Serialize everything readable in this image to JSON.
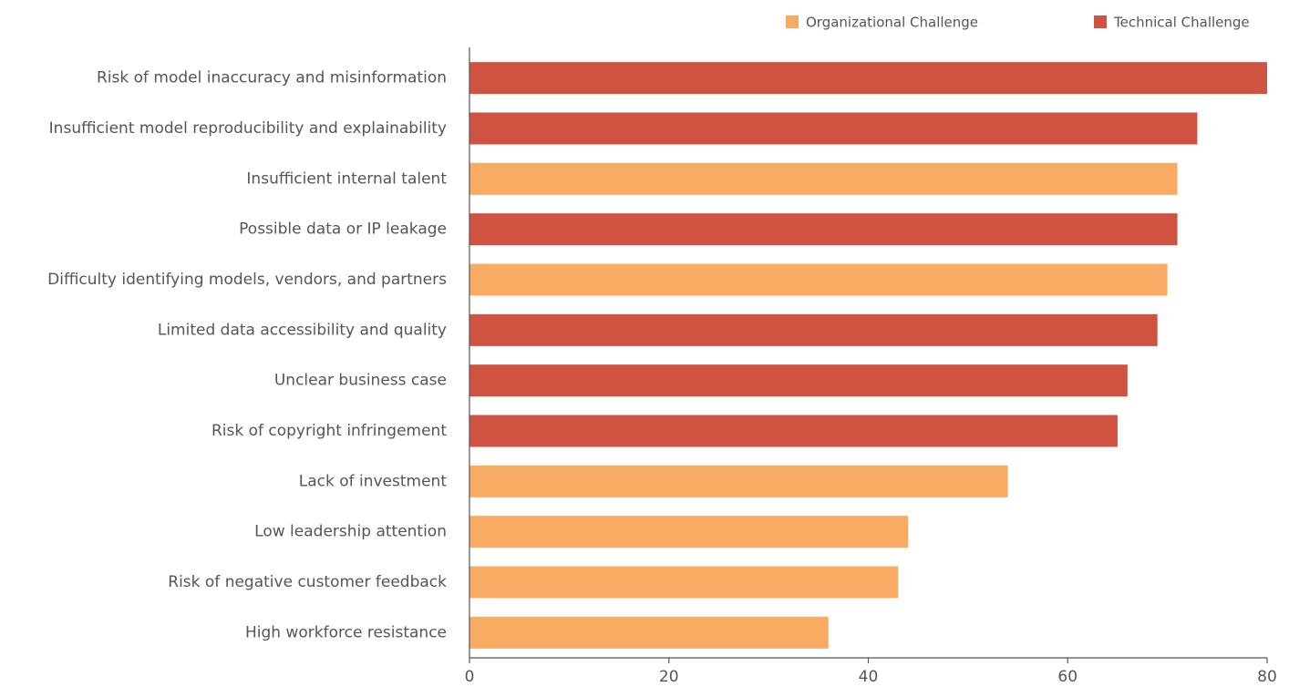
{
  "chart_data": {
    "type": "hbar",
    "categories": [
      "Risk of model inaccuracy and misinformation",
      "Insufficient model reproducibility and explainability",
      "Insufficient internal talent",
      "Possible data or IP leakage",
      "Difficulty identifying models, vendors, and partners",
      "Limited data accessibility and quality",
      "Unclear business case",
      "Risk of copyright infringement",
      "Lack of investment",
      "Low leadership attention",
      "Risk of negative customer feedback",
      "High workforce resistance"
    ],
    "series": [
      {
        "name": "Organizational Challenge",
        "color": "#f9ab63",
        "values": [
          null,
          null,
          71,
          null,
          70,
          null,
          null,
          null,
          54,
          44,
          43,
          36
        ]
      },
      {
        "name": "Technical Challenge",
        "color": "#cf5340",
        "values": [
          80,
          73,
          null,
          71,
          null,
          69,
          66,
          65,
          null,
          null,
          null,
          null
        ]
      }
    ],
    "xlim": [
      0,
      80
    ],
    "xticks": [
      0,
      20,
      40,
      60,
      80
    ],
    "legend": "top-right"
  }
}
